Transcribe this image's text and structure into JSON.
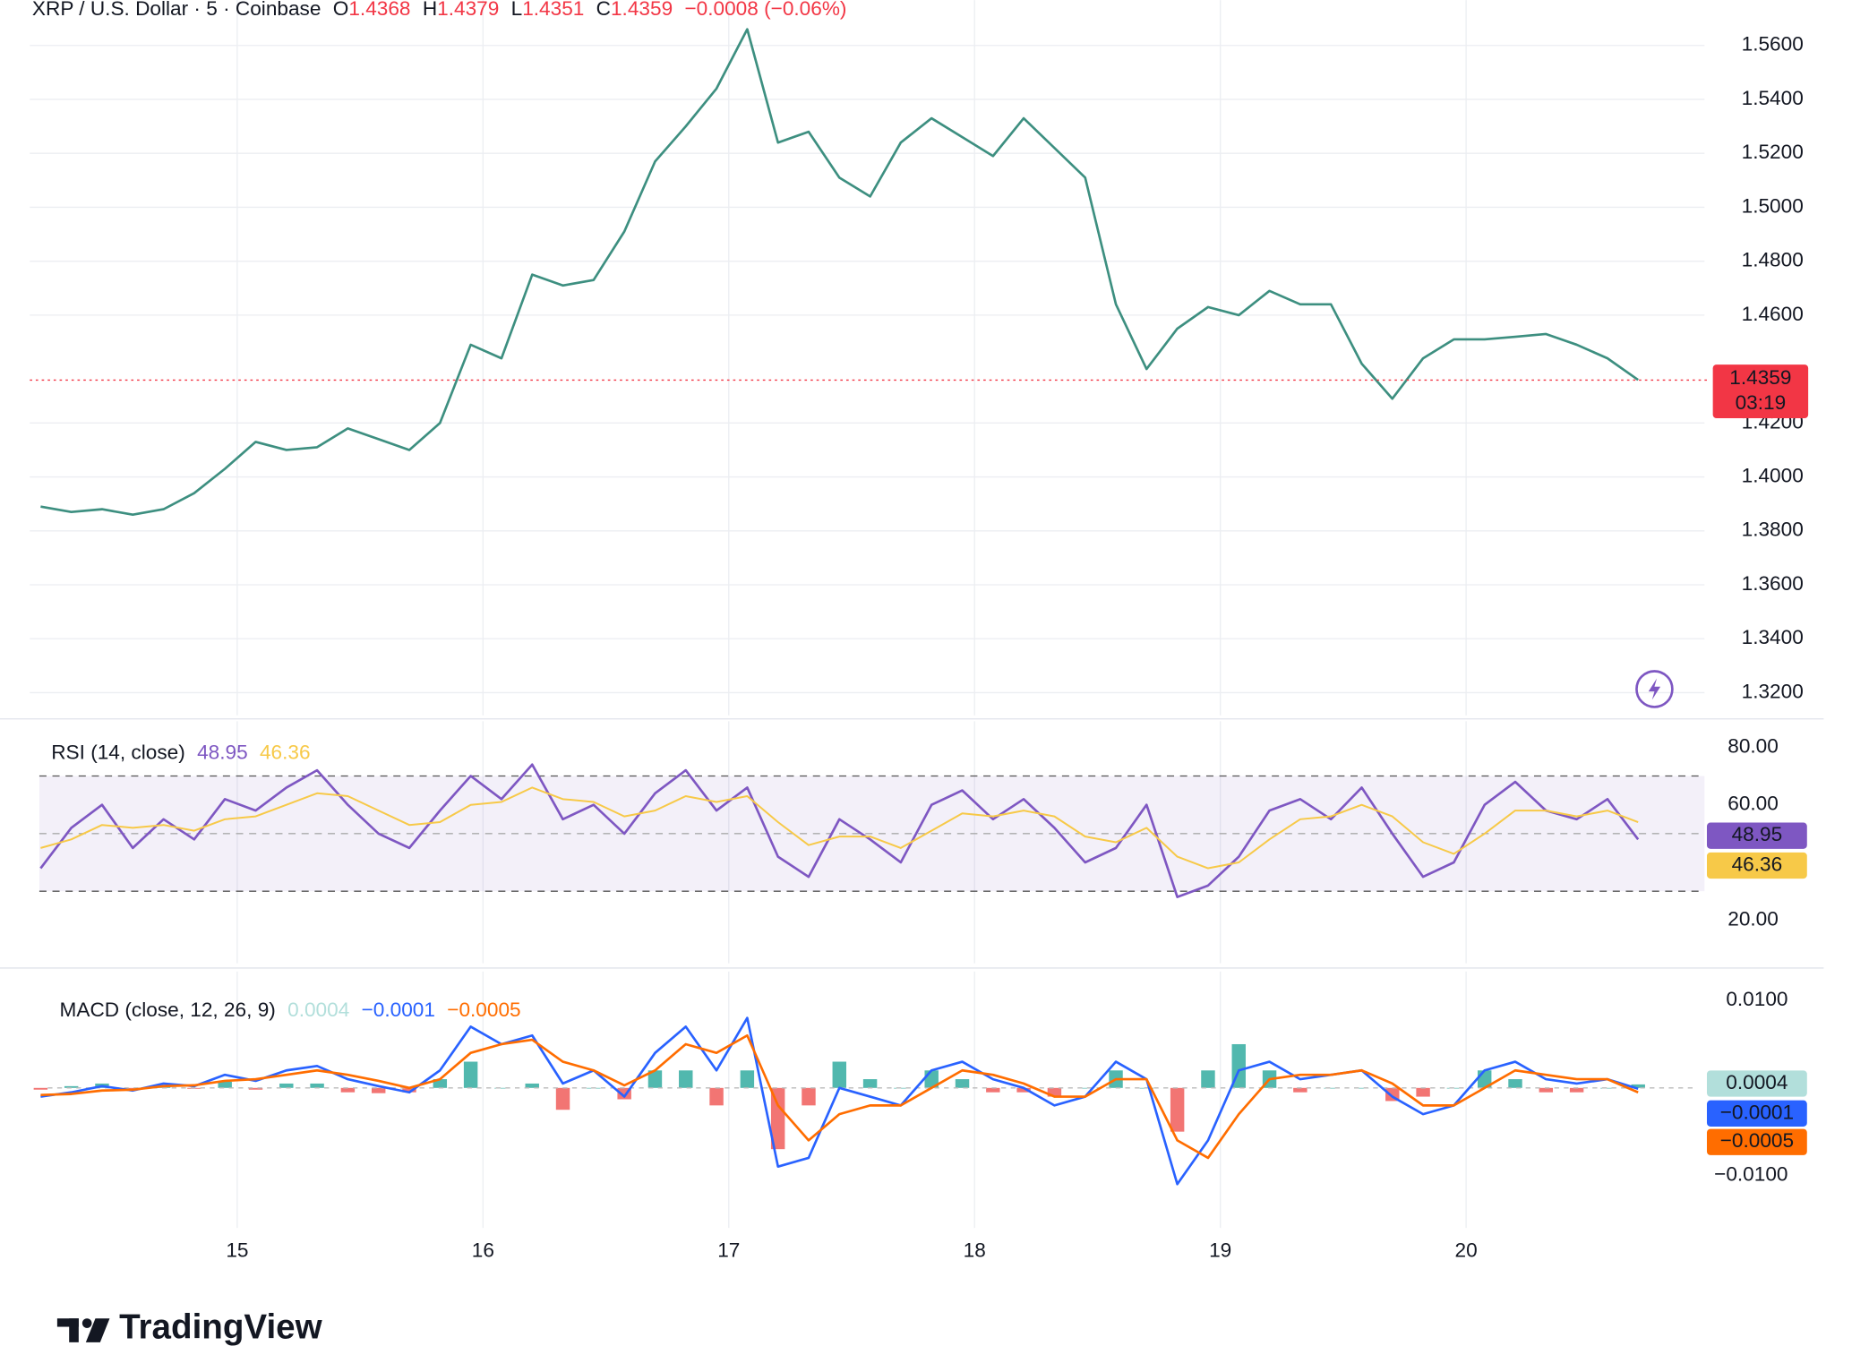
{
  "chart_data": [
    {
      "type": "line",
      "title": "XRP / U.S. Dollar · 5 · Coinbase",
      "ohlc": [
        {
          "label": "O",
          "value": 1.4368
        },
        {
          "label": "H",
          "value": 1.4379
        },
        {
          "label": "L",
          "value": 1.4351
        },
        {
          "label": "C",
          "value": 1.4359
        }
      ],
      "change": "−0.0008 (−0.06%)",
      "quote_color": "#f23645",
      "color": "#3d8f80",
      "x": [
        14.2,
        14.325,
        14.45,
        14.575,
        14.7,
        14.825,
        14.95,
        15.075,
        15.2,
        15.325,
        15.45,
        15.575,
        15.7,
        15.825,
        15.95,
        16.075,
        16.2,
        16.325,
        16.45,
        16.575,
        16.7,
        16.825,
        16.95,
        17.075,
        17.2,
        17.325,
        17.45,
        17.575,
        17.7,
        17.825,
        17.95,
        18.075,
        18.2,
        18.325,
        18.45,
        18.575,
        18.7,
        18.825,
        18.95,
        19.075,
        19.2,
        19.325,
        19.45,
        19.575,
        19.7,
        19.825,
        19.95,
        20.075,
        20.2,
        20.325,
        20.45,
        20.575,
        20.7
      ],
      "values": [
        1.389,
        1.387,
        1.388,
        1.386,
        1.388,
        1.394,
        1.403,
        1.413,
        1.41,
        1.411,
        1.418,
        1.414,
        1.41,
        1.42,
        1.449,
        1.444,
        1.475,
        1.471,
        1.473,
        1.491,
        1.517,
        1.53,
        1.544,
        1.566,
        1.524,
        1.528,
        1.511,
        1.504,
        1.524,
        1.533,
        1.526,
        1.519,
        1.533,
        1.522,
        1.511,
        1.464,
        1.44,
        1.455,
        1.463,
        1.46,
        1.469,
        1.464,
        1.464,
        1.442,
        1.429,
        1.444,
        1.451,
        1.451,
        1.452,
        1.453,
        1.449,
        1.444,
        1.436
      ],
      "last_price": 1.4359,
      "countdown": "03:19",
      "xlim": [
        14.156,
        20.97
      ],
      "xticks": [
        15,
        16,
        17,
        18,
        19,
        20
      ],
      "ylim": [
        1.3116,
        1.5768
      ],
      "yticks": [
        {
          "value": 1.32,
          "label": "1.3200"
        },
        {
          "value": 1.34,
          "label": "1.3400"
        },
        {
          "value": 1.36,
          "label": "1.3600"
        },
        {
          "value": 1.38,
          "label": "1.3800"
        },
        {
          "value": 1.4,
          "label": "1.4000"
        },
        {
          "value": 1.42,
          "label": "1.4200"
        },
        {
          "value": 1.46,
          "label": "1.4600"
        },
        {
          "value": 1.48,
          "label": "1.4800"
        },
        {
          "value": 1.5,
          "label": "1.5000"
        },
        {
          "value": 1.52,
          "label": "1.5200"
        },
        {
          "value": 1.54,
          "label": "1.5400"
        },
        {
          "value": 1.56,
          "label": "1.5600"
        }
      ],
      "grid": true
    },
    {
      "type": "line",
      "title": "RSI (14, close)",
      "series": [
        {
          "color": "#7e57c2",
          "last": 48.95,
          "values": [
            38,
            52,
            60,
            45,
            55,
            48,
            62,
            58,
            66,
            72,
            60,
            50,
            45,
            58,
            70,
            62,
            74,
            55,
            60,
            50,
            64,
            72,
            58,
            66,
            42,
            35,
            55,
            48,
            40,
            60,
            65,
            55,
            62,
            52,
            40,
            45,
            60,
            28,
            32,
            42,
            58,
            62,
            55,
            66,
            50,
            35,
            40,
            60,
            68,
            58,
            55,
            62,
            48
          ]
        },
        {
          "color": "#f7c948",
          "last": 46.36,
          "values": [
            45,
            48,
            53,
            52,
            53,
            51,
            55,
            56,
            60,
            64,
            63,
            58,
            53,
            54,
            60,
            61,
            66,
            62,
            61,
            56,
            58,
            63,
            61,
            63,
            54,
            46,
            49,
            49,
            45,
            51,
            57,
            56,
            58,
            56,
            49,
            47,
            52,
            42,
            38,
            40,
            48,
            55,
            56,
            60,
            56,
            47,
            43,
            50,
            58,
            58,
            56,
            58,
            54
          ]
        }
      ],
      "levels": [
        30,
        50,
        70
      ],
      "ylim": [
        5,
        89
      ],
      "yticks": [
        {
          "value": 20,
          "label": "20.00"
        },
        {
          "value": 60,
          "label": "60.00"
        },
        {
          "value": 80,
          "label": "80.00"
        }
      ]
    },
    {
      "type": "macd",
      "title": "MACD (close, 12, 26, 9)",
      "histogram": {
        "up_color": "#26a69a",
        "down_color": "#ef5350",
        "label_color": "#b2dfdb",
        "last": 0.0004,
        "values": [
          -0.0002,
          0.0002,
          0.0005,
          -0.0001,
          0.0003,
          -0.0001,
          0.0007,
          -0.0002,
          0.0005,
          0.0005,
          -0.0005,
          -0.0006,
          -0.0005,
          0.001,
          0.003,
          0,
          0.0005,
          -0.0025,
          0,
          -0.0013,
          0.002,
          0.002,
          -0.002,
          0.002,
          -0.007,
          -0.002,
          0.003,
          0.001,
          0,
          0.002,
          0.001,
          -0.0005,
          -0.0005,
          -0.001,
          0,
          0.002,
          0,
          -0.005,
          0.002,
          0.005,
          0.002,
          -0.0005,
          0,
          0,
          -0.0015,
          -0.001,
          0,
          0.002,
          0.001,
          -0.0005,
          -0.0005,
          0,
          0.0004
        ]
      },
      "series": [
        {
          "color": "#2962ff",
          "last": {
            "value": -0.0001,
            "label": "−0.0001"
          },
          "values": [
            -0.001,
            -0.0005,
            0.0002,
            -0.0003,
            0.0005,
            0.0002,
            0.0015,
            0.0008,
            0.002,
            0.0025,
            0.001,
            0.0002,
            -0.0005,
            0.002,
            0.007,
            0.005,
            0.006,
            0.0005,
            0.002,
            -0.001,
            0.004,
            0.007,
            0.002,
            0.008,
            -0.009,
            -0.008,
            0,
            -0.001,
            -0.002,
            0.002,
            0.003,
            0.001,
            0,
            -0.002,
            -0.001,
            0.003,
            0.001,
            -0.011,
            -0.006,
            0.002,
            0.003,
            0.001,
            0.0015,
            0.002,
            -0.001,
            -0.003,
            -0.002,
            0.002,
            0.003,
            0.001,
            0.0005,
            0.001,
            -0.0001
          ]
        },
        {
          "color": "#ff6d00",
          "last": {
            "value": -0.0005,
            "label": "−0.0005"
          },
          "values": [
            -0.0008,
            -0.0007,
            -0.0003,
            -0.0002,
            0.0002,
            0.0003,
            0.0008,
            0.001,
            0.0015,
            0.002,
            0.0015,
            0.0008,
            0,
            0.001,
            0.004,
            0.005,
            0.0055,
            0.003,
            0.002,
            0.0003,
            0.002,
            0.005,
            0.004,
            0.006,
            -0.002,
            -0.006,
            -0.003,
            -0.002,
            -0.002,
            0,
            0.002,
            0.0015,
            0.0005,
            -0.001,
            -0.001,
            0.001,
            0.001,
            -0.006,
            -0.008,
            -0.003,
            0.001,
            0.0015,
            0.0015,
            0.002,
            0.0005,
            -0.002,
            -0.002,
            0,
            0.002,
            0.0015,
            0.001,
            0.001,
            -0.0005
          ]
        }
      ],
      "ylim": [
        -0.016,
        0.0133
      ],
      "yticks": [
        {
          "value": -0.01,
          "label": "−0.0100"
        },
        {
          "value": 0.01,
          "label": "0.0100"
        }
      ]
    }
  ],
  "logo": {
    "text": "TradingView"
  }
}
